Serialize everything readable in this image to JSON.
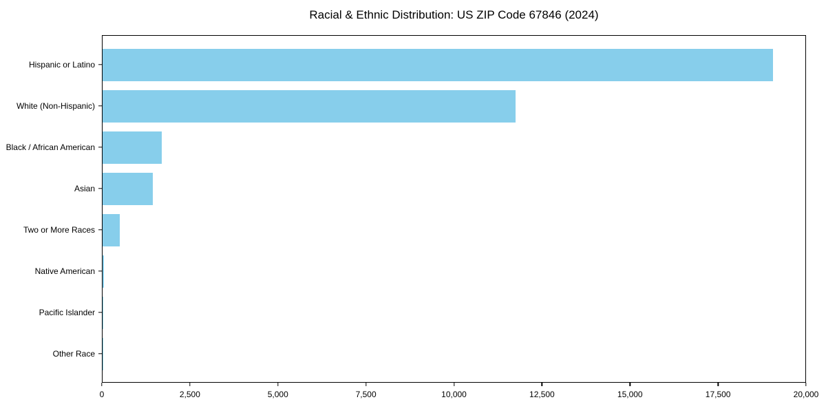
{
  "chart_data": {
    "type": "bar",
    "orientation": "horizontal",
    "title": "Racial & Ethnic Distribution: US ZIP Code 67846 (2024)",
    "categories": [
      "Hispanic or Latino",
      "White (Non-Hispanic)",
      "Black / African American",
      "Asian",
      "Two or More Races",
      "Native American",
      "Pacific Islander",
      "Other Race"
    ],
    "values": [
      19040,
      11730,
      1680,
      1430,
      490,
      40,
      25,
      10
    ],
    "xlabel": "",
    "ylabel": "",
    "xlim": [
      0,
      20000
    ],
    "x_ticks": [
      0,
      2500,
      5000,
      7500,
      10000,
      12500,
      15000,
      17500,
      20000
    ],
    "x_tick_labels": [
      "0",
      "2,500",
      "5,000",
      "7,500",
      "10,000",
      "12,500",
      "15,000",
      "17,500",
      "20,000"
    ],
    "bar_color": "#87CEEB",
    "frame_color": "#000000",
    "grid": false,
    "legend": null
  }
}
